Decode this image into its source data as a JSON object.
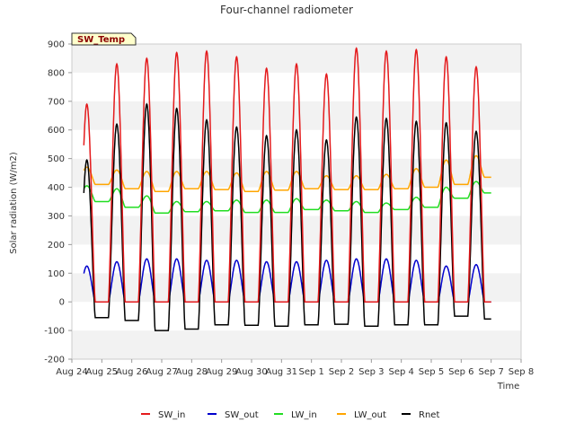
{
  "chart_data": {
    "type": "line",
    "title": "Four-channel radiometer",
    "xlabel": "Time",
    "ylabel": "Solar radiation (W/m2)",
    "ylim": [
      -200,
      900
    ],
    "xlim": [
      0,
      15
    ],
    "yticks": [
      -200,
      -100,
      0,
      100,
      200,
      300,
      400,
      500,
      600,
      700,
      800,
      900
    ],
    "xtick_labels": [
      "Aug 24",
      "Aug 25",
      "Aug 26",
      "Aug 27",
      "Aug 28",
      "Aug 29",
      "Aug 30",
      "Aug 31",
      "Sep 1",
      "Sep 2",
      "Sep 3",
      "Sep 4",
      "Sep 5",
      "Sep 6",
      "Sep 7",
      "Sep 8"
    ],
    "grid": "horizontal bands",
    "legend_position": "bottom",
    "tag_label": "SW_Temp",
    "series": [
      {
        "name": "SW_in",
        "color": "#e41a1c",
        "day_peaks": [
          690,
          830,
          850,
          870,
          875,
          855,
          815,
          830,
          795,
          885,
          875,
          880,
          855,
          820
        ],
        "night_value": 0
      },
      {
        "name": "SW_out",
        "color": "#0000cc",
        "day_peaks": [
          125,
          140,
          150,
          150,
          145,
          145,
          140,
          140,
          145,
          150,
          150,
          145,
          125,
          130
        ],
        "night_value": 0
      },
      {
        "name": "LW_in",
        "color": "#22dd22",
        "day_peaks": [
          405,
          395,
          370,
          350,
          350,
          355,
          355,
          360,
          355,
          350,
          345,
          365,
          400,
          420
        ],
        "night_value": [
          360,
          350,
          330,
          310,
          315,
          318,
          312,
          312,
          322,
          318,
          312,
          322,
          330,
          362,
          380
        ]
      },
      {
        "name": "LW_out",
        "color": "#ffa500",
        "day_peaks": [
          470,
          460,
          455,
          455,
          455,
          450,
          455,
          455,
          440,
          440,
          445,
          465,
          495,
          510
        ],
        "night_value": [
          420,
          410,
          395,
          385,
          395,
          392,
          385,
          390,
          395,
          392,
          392,
          395,
          400,
          410,
          435
        ]
      },
      {
        "name": "Rnet",
        "color": "#000000",
        "day_peaks": [
          495,
          620,
          690,
          675,
          635,
          610,
          580,
          600,
          565,
          645,
          640,
          630,
          625,
          595
        ],
        "night_value": [
          -60,
          -55,
          -65,
          -100,
          -95,
          -80,
          -82,
          -85,
          -80,
          -78,
          -85,
          -80,
          -80,
          -50,
          -60
        ]
      }
    ]
  }
}
